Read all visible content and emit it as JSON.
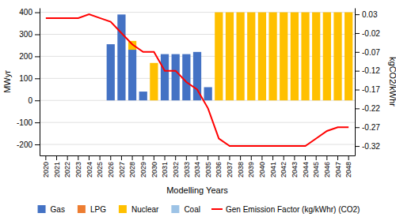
{
  "chart_data": {
    "type": "bar",
    "stacked": true,
    "categories": [
      "2020",
      "2021",
      "2022",
      "2023",
      "2024",
      "2025",
      "2026",
      "2027",
      "2028",
      "2029",
      "2030",
      "2031",
      "2032",
      "2033",
      "2034",
      "2035",
      "2036",
      "2037",
      "2038",
      "2039",
      "2040",
      "2041",
      "2042",
      "2043",
      "2044",
      "2045",
      "2046",
      "2047",
      "2048"
    ],
    "series": [
      {
        "name": "Gas",
        "type": "bar",
        "color": "#4472c4",
        "values": [
          0,
          0,
          0,
          0,
          0,
          0,
          255,
          390,
          230,
          40,
          0,
          210,
          210,
          210,
          220,
          60,
          0,
          0,
          0,
          0,
          0,
          0,
          0,
          0,
          0,
          0,
          0,
          0,
          0
        ]
      },
      {
        "name": "LPG",
        "type": "bar",
        "color": "#ed7d31",
        "values": [
          0,
          0,
          0,
          0,
          0,
          0,
          0,
          0,
          0,
          0,
          0,
          0,
          0,
          0,
          0,
          0,
          0,
          0,
          0,
          0,
          0,
          0,
          0,
          0,
          0,
          0,
          0,
          0,
          0
        ]
      },
      {
        "name": "Nuclear",
        "type": "bar",
        "color": "#ffc000",
        "values": [
          0,
          0,
          0,
          0,
          0,
          0,
          0,
          0,
          40,
          0,
          170,
          0,
          0,
          0,
          0,
          0,
          400,
          400,
          400,
          400,
          400,
          400,
          400,
          400,
          400,
          400,
          400,
          400,
          400
        ]
      },
      {
        "name": "Coal",
        "type": "bar",
        "color": "#9dc3e6",
        "values": [
          0,
          0,
          0,
          0,
          0,
          0,
          0,
          0,
          0,
          0,
          0,
          0,
          0,
          0,
          0,
          0,
          0,
          0,
          0,
          0,
          0,
          0,
          0,
          0,
          0,
          0,
          0,
          0,
          0
        ]
      },
      {
        "name": "Gen Emission Factor (kg/kWhr) (CO2)",
        "type": "line",
        "axis": "y2",
        "color": "#ff0000",
        "values": [
          0.02,
          0.02,
          0.02,
          0.02,
          0.03,
          0.02,
          0.01,
          -0.02,
          -0.05,
          -0.07,
          -0.07,
          -0.12,
          -0.12,
          -0.15,
          -0.17,
          -0.22,
          -0.3,
          -0.32,
          -0.32,
          -0.32,
          -0.32,
          -0.32,
          -0.32,
          -0.32,
          -0.32,
          -0.3,
          -0.28,
          -0.27,
          -0.27
        ]
      }
    ],
    "xlabel": "Modelling Years",
    "ylabel": "MWyr",
    "y2label": "kgCO2/kWhr",
    "ylim": [
      -250,
      420
    ],
    "yticks": [
      -200,
      -100,
      0,
      100,
      200,
      300,
      400
    ],
    "y2lim": [
      -0.345,
      0.047
    ],
    "y2ticks": [
      0.03,
      -0.02,
      -0.07,
      -0.12,
      -0.17,
      -0.22,
      -0.27,
      -0.32
    ],
    "grid": true,
    "legend": "bottom"
  }
}
